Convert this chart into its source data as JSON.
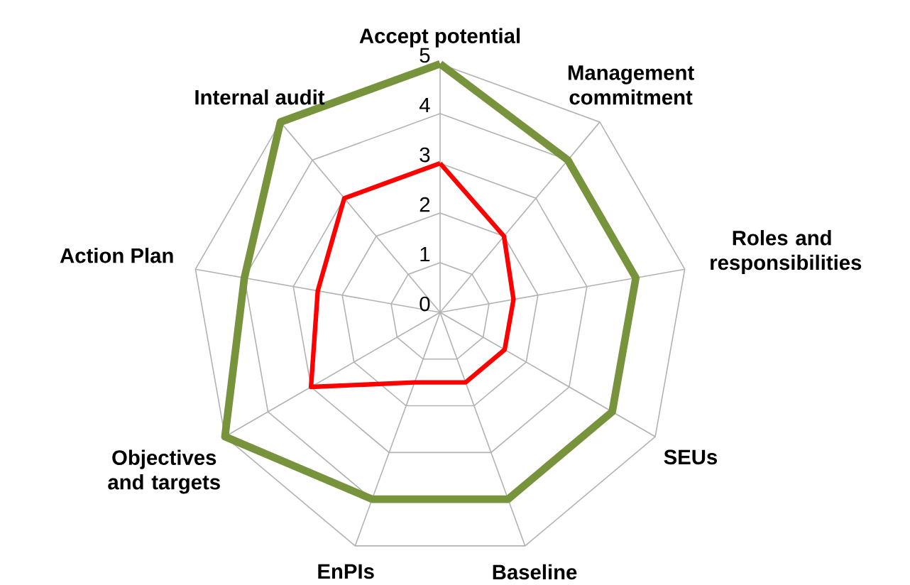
{
  "chart_data": {
    "type": "radar",
    "categories": [
      "Accept potential",
      "Management commitment",
      "Roles and responsibilities",
      "SEUs",
      "Baseline",
      "EnPIs",
      "Objectives and targets",
      "Action Plan",
      "Internal audit"
    ],
    "series": [
      {
        "color": "#77933c",
        "values": [
          5,
          4,
          4,
          4,
          4,
          4,
          5,
          4,
          5
        ]
      },
      {
        "color": "#ff0000",
        "values": [
          3,
          2,
          1.5,
          1.5,
          1.5,
          1.5,
          3,
          2.5,
          3
        ]
      }
    ],
    "ylim": [
      0,
      5
    ],
    "yticks": [
      0,
      1,
      2,
      3,
      4,
      5
    ],
    "grid": true,
    "marker": "none"
  }
}
